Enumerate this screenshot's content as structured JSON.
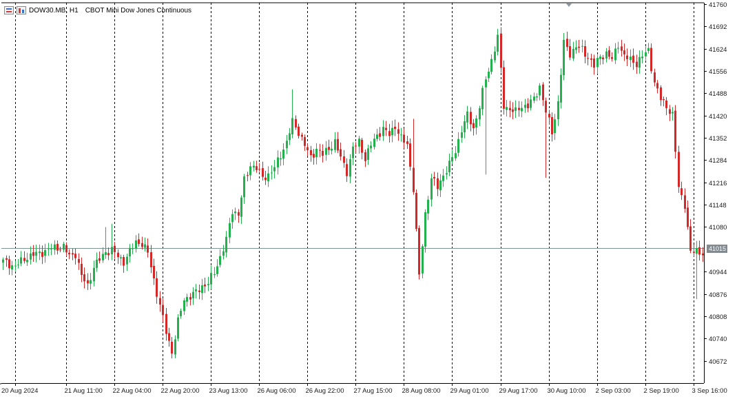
{
  "header": {
    "symbol_timeframe": "DOW30.MB, H1",
    "description": "CBOT Mini Dow Jones Continuous"
  },
  "current_price_label": "41015",
  "colors": {
    "bull": "#22b14c",
    "bear": "#d42727",
    "grid": "#000000",
    "current_line": "#7a9490",
    "axis": "#000000"
  },
  "icons": [
    "chart-properties-icon",
    "symbol-icon",
    "scroll-marker-icon"
  ],
  "chart_data": {
    "type": "candlestick",
    "title": "CBOT Mini Dow Jones Continuous",
    "symbol": "DOW30.MB",
    "timeframe": "H1",
    "ylim": [
      40604,
      41764
    ],
    "yticks": [
      41760,
      41692,
      41624,
      41556,
      41488,
      41420,
      41352,
      41284,
      41216,
      41148,
      41080,
      40944,
      40876,
      40808,
      40740,
      40672
    ],
    "xtick_labels": [
      "20 Aug 2024",
      "21 Aug 11:00",
      "22 Aug 04:00",
      "22 Aug 20:00",
      "23 Aug 13:00",
      "26 Aug 06:00",
      "26 Aug 22:00",
      "27 Aug 15:00",
      "28 Aug 08:00",
      "29 Aug 01:00",
      "29 Aug 17:00",
      "30 Aug 10:00",
      "2 Sep 03:00",
      "2 Sep 19:00",
      "3 Sep 16:00"
    ],
    "current_price": 41015,
    "grid": "vertical dashed separators",
    "close_path": [
      [
        0,
        40975
      ],
      [
        4,
        40960
      ],
      [
        8,
        40990
      ],
      [
        12,
        41000
      ],
      [
        16,
        41015
      ],
      [
        20,
        41020
      ],
      [
        22,
        40990
      ],
      [
        24,
        41000
      ],
      [
        26,
        40930
      ],
      [
        28,
        40900
      ],
      [
        30,
        40960
      ],
      [
        32,
        40980
      ],
      [
        34,
        41005
      ],
      [
        36,
        41010
      ],
      [
        38,
        40990
      ],
      [
        40,
        40975
      ],
      [
        42,
        41005
      ],
      [
        44,
        41035
      ],
      [
        46,
        41030
      ],
      [
        48,
        41000
      ],
      [
        50,
        40920
      ],
      [
        52,
        40840
      ],
      [
        54,
        40760
      ],
      [
        56,
        40700
      ],
      [
        58,
        40790
      ],
      [
        60,
        40860
      ],
      [
        62,
        40870
      ],
      [
        64,
        40880
      ],
      [
        66,
        40900
      ],
      [
        68,
        40910
      ],
      [
        70,
        40940
      ],
      [
        72,
        40990
      ],
      [
        74,
        41040
      ],
      [
        76,
        41130
      ],
      [
        78,
        41120
      ],
      [
        80,
        41220
      ],
      [
        82,
        41270
      ],
      [
        84,
        41260
      ],
      [
        86,
        41230
      ],
      [
        88,
        41240
      ],
      [
        90,
        41260
      ],
      [
        92,
        41300
      ],
      [
        94,
        41340
      ],
      [
        96,
        41400
      ],
      [
        98,
        41370
      ],
      [
        100,
        41330
      ],
      [
        102,
        41290
      ],
      [
        104,
        41320
      ],
      [
        106,
        41300
      ],
      [
        108,
        41320
      ],
      [
        110,
        41340
      ],
      [
        112,
        41290
      ],
      [
        114,
        41250
      ],
      [
        116,
        41320
      ],
      [
        118,
        41340
      ],
      [
        120,
        41290
      ],
      [
        122,
        41330
      ],
      [
        124,
        41360
      ],
      [
        126,
        41380
      ],
      [
        128,
        41360
      ],
      [
        130,
        41390
      ],
      [
        132,
        41350
      ],
      [
        134,
        41330
      ],
      [
        136,
        41200
      ],
      [
        138,
        40930
      ],
      [
        140,
        41120
      ],
      [
        142,
        41230
      ],
      [
        144,
        41200
      ],
      [
        146,
        41240
      ],
      [
        148,
        41270
      ],
      [
        150,
        41310
      ],
      [
        152,
        41380
      ],
      [
        154,
        41420
      ],
      [
        156,
        41380
      ],
      [
        158,
        41450
      ],
      [
        160,
        41530
      ],
      [
        162,
        41590
      ],
      [
        164,
        41660
      ],
      [
        166,
        41450
      ],
      [
        168,
        41440
      ],
      [
        170,
        41430
      ],
      [
        172,
        41450
      ],
      [
        174,
        41450
      ],
      [
        176,
        41470
      ],
      [
        178,
        41510
      ],
      [
        180,
        41430
      ],
      [
        182,
        41370
      ],
      [
        184,
        41460
      ],
      [
        186,
        41640
      ],
      [
        188,
        41610
      ],
      [
        190,
        41630
      ],
      [
        192,
        41620
      ],
      [
        194,
        41600
      ],
      [
        196,
        41570
      ],
      [
        198,
        41600
      ],
      [
        200,
        41610
      ],
      [
        202,
        41590
      ],
      [
        204,
        41640
      ],
      [
        206,
        41600
      ],
      [
        208,
        41590
      ],
      [
        210,
        41580
      ],
      [
        212,
        41600
      ],
      [
        214,
        41620
      ],
      [
        216,
        41520
      ],
      [
        218,
        41470
      ],
      [
        220,
        41450
      ],
      [
        222,
        41420
      ],
      [
        224,
        41200
      ],
      [
        226,
        41150
      ],
      [
        228,
        41000
      ],
      [
        230,
        41010
      ],
      [
        232,
        41000
      ]
    ],
    "extra_lows": {
      "56": 40680,
      "138": 40920,
      "160": 41240,
      "180": 41230,
      "230": 40860
    },
    "extra_highs": {
      "34": 41080,
      "36": 41090,
      "96": 41500,
      "136": 41410,
      "164": 41670,
      "186": 41660,
      "230": 41030
    }
  }
}
